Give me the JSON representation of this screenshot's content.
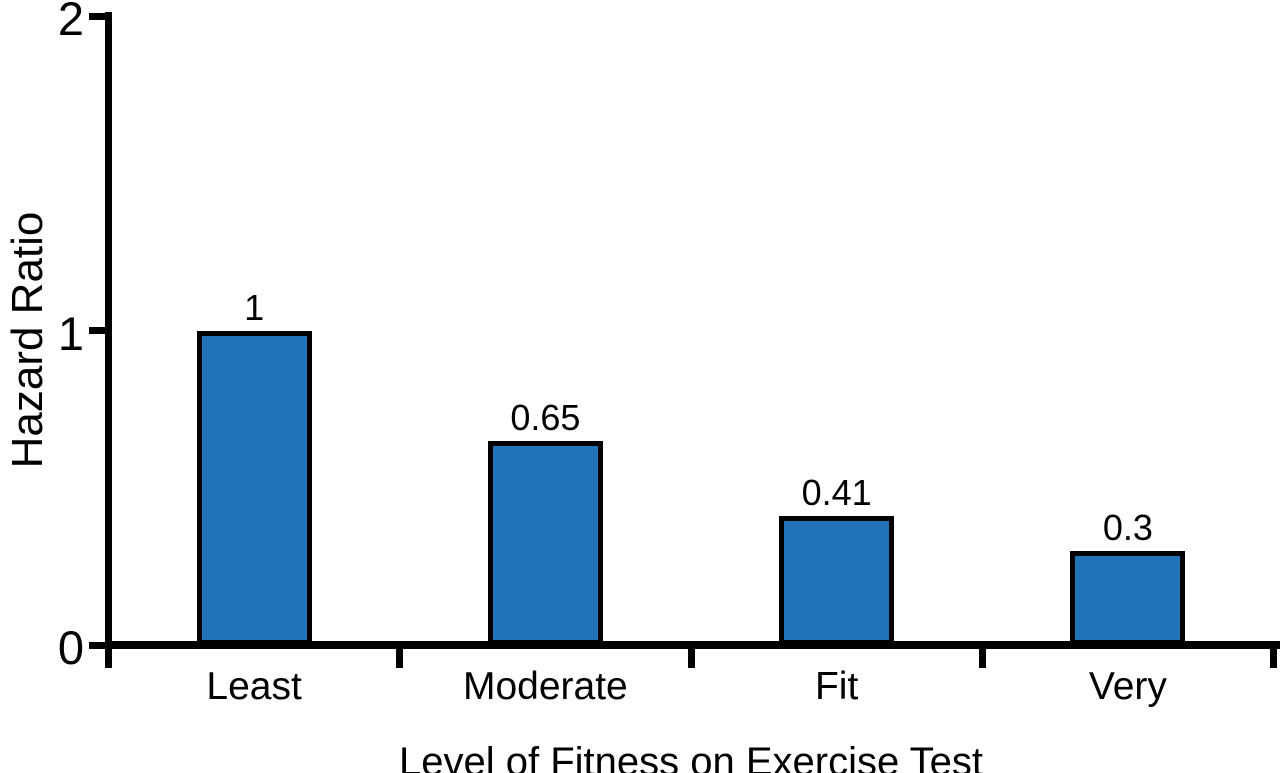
{
  "chart_data": {
    "type": "bar",
    "categories": [
      "Least",
      "Moderate",
      "Fit",
      "Very"
    ],
    "values": [
      1,
      0.65,
      0.41,
      0.3
    ],
    "value_labels": [
      "1",
      "0.65",
      "0.41",
      "0.3"
    ],
    "xlabel": "Level of Fitness on Exercise Test",
    "ylabel": "Hazard Ratio",
    "ylim": [
      0,
      2
    ],
    "yticks": [
      {
        "value": 0,
        "label": "0"
      },
      {
        "value": 1,
        "label": "1"
      },
      {
        "value": 2,
        "label": "2"
      }
    ],
    "bar_fill_color": "#2073B7",
    "bar_border_color": "#000000",
    "axis_color": "#000000",
    "text_color": "#000000",
    "background_color": "#FFFFFF",
    "grid": false,
    "legend_position": "none"
  }
}
